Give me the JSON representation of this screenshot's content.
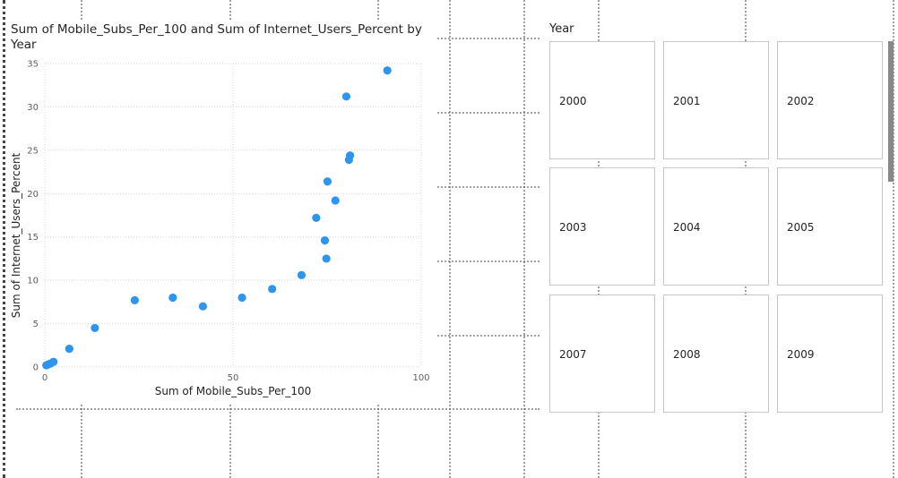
{
  "chart_data": {
    "type": "scatter",
    "title": "Sum of Mobile_Subs_Per_100 and Sum of Internet_Users_Percent by Year",
    "xlabel": "Sum of Mobile_Subs_Per_100",
    "ylabel": "Sum of Internet_Users_Percent",
    "xlim": [
      0,
      100
    ],
    "ylim": [
      0,
      35
    ],
    "xticks": [
      0,
      50,
      100
    ],
    "yticks": [
      0,
      5,
      10,
      15,
      20,
      25,
      30,
      35
    ],
    "grid": true,
    "point_color": "#2f95ec",
    "points": [
      {
        "x": 0.4,
        "y": 0.2
      },
      {
        "x": 0.9,
        "y": 0.3
      },
      {
        "x": 1.5,
        "y": 0.4
      },
      {
        "x": 2.3,
        "y": 0.6
      },
      {
        "x": 6.5,
        "y": 2.1
      },
      {
        "x": 13.3,
        "y": 4.5
      },
      {
        "x": 23.9,
        "y": 7.7
      },
      {
        "x": 34.0,
        "y": 8.0
      },
      {
        "x": 42.0,
        "y": 7.0
      },
      {
        "x": 52.4,
        "y": 8.0
      },
      {
        "x": 60.4,
        "y": 9.0
      },
      {
        "x": 68.2,
        "y": 10.6
      },
      {
        "x": 72.1,
        "y": 17.2
      },
      {
        "x": 74.4,
        "y": 14.6
      },
      {
        "x": 74.8,
        "y": 12.5
      },
      {
        "x": 75.1,
        "y": 21.4
      },
      {
        "x": 77.2,
        "y": 19.2
      },
      {
        "x": 80.1,
        "y": 31.2
      },
      {
        "x": 80.8,
        "y": 23.9
      },
      {
        "x": 81.1,
        "y": 24.4
      },
      {
        "x": 91.0,
        "y": 34.2
      }
    ]
  },
  "slicer": {
    "header": "Year",
    "items": [
      "2000",
      "2001",
      "2002",
      "2003",
      "2004",
      "2005",
      "2007",
      "2008",
      "2009"
    ]
  }
}
